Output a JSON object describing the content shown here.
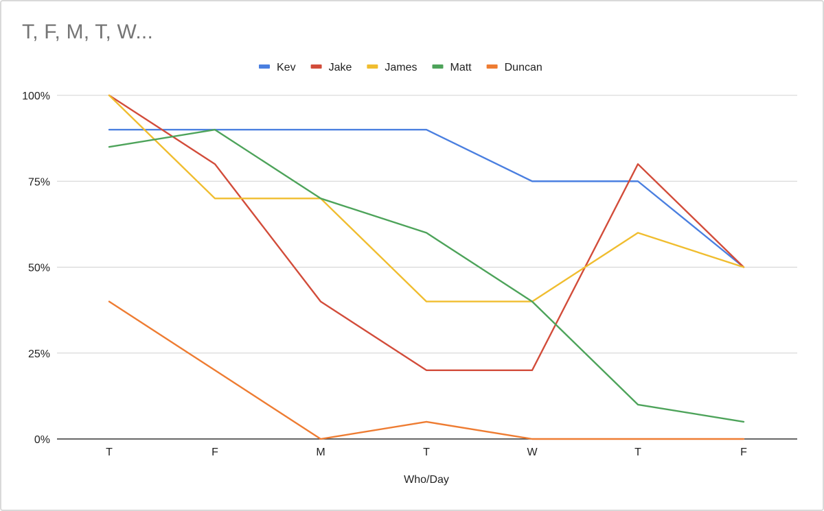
{
  "chart_data": {
    "type": "line",
    "title": "T, F, M, T, W...",
    "xlabel": "Who/Day",
    "ylabel": "",
    "categories": [
      "T",
      "F",
      "M",
      "T",
      "W",
      "T",
      "F"
    ],
    "ylim": [
      0,
      1
    ],
    "yticks": [
      0,
      0.25,
      0.5,
      0.75,
      1.0
    ],
    "ytick_labels": [
      "0%",
      "25%",
      "50%",
      "75%",
      "100%"
    ],
    "grid": true,
    "legend_position": "top",
    "series": [
      {
        "name": "Kev",
        "color": "#4a7fe0",
        "values": [
          0.9,
          0.9,
          0.9,
          0.9,
          0.75,
          0.75,
          0.5
        ]
      },
      {
        "name": "Jake",
        "color": "#d24c3a",
        "values": [
          1.0,
          0.8,
          0.4,
          0.2,
          0.2,
          0.8,
          0.5
        ]
      },
      {
        "name": "James",
        "color": "#f0bd2f",
        "values": [
          1.0,
          0.7,
          0.7,
          0.4,
          0.4,
          0.6,
          0.5
        ]
      },
      {
        "name": "Matt",
        "color": "#4da35a",
        "values": [
          0.85,
          0.9,
          0.7,
          0.6,
          0.4,
          0.1,
          0.05
        ]
      },
      {
        "name": "Duncan",
        "color": "#ee7c32",
        "values": [
          0.4,
          0.2,
          0.0,
          0.05,
          0.0,
          0.0,
          0.0
        ]
      }
    ]
  }
}
